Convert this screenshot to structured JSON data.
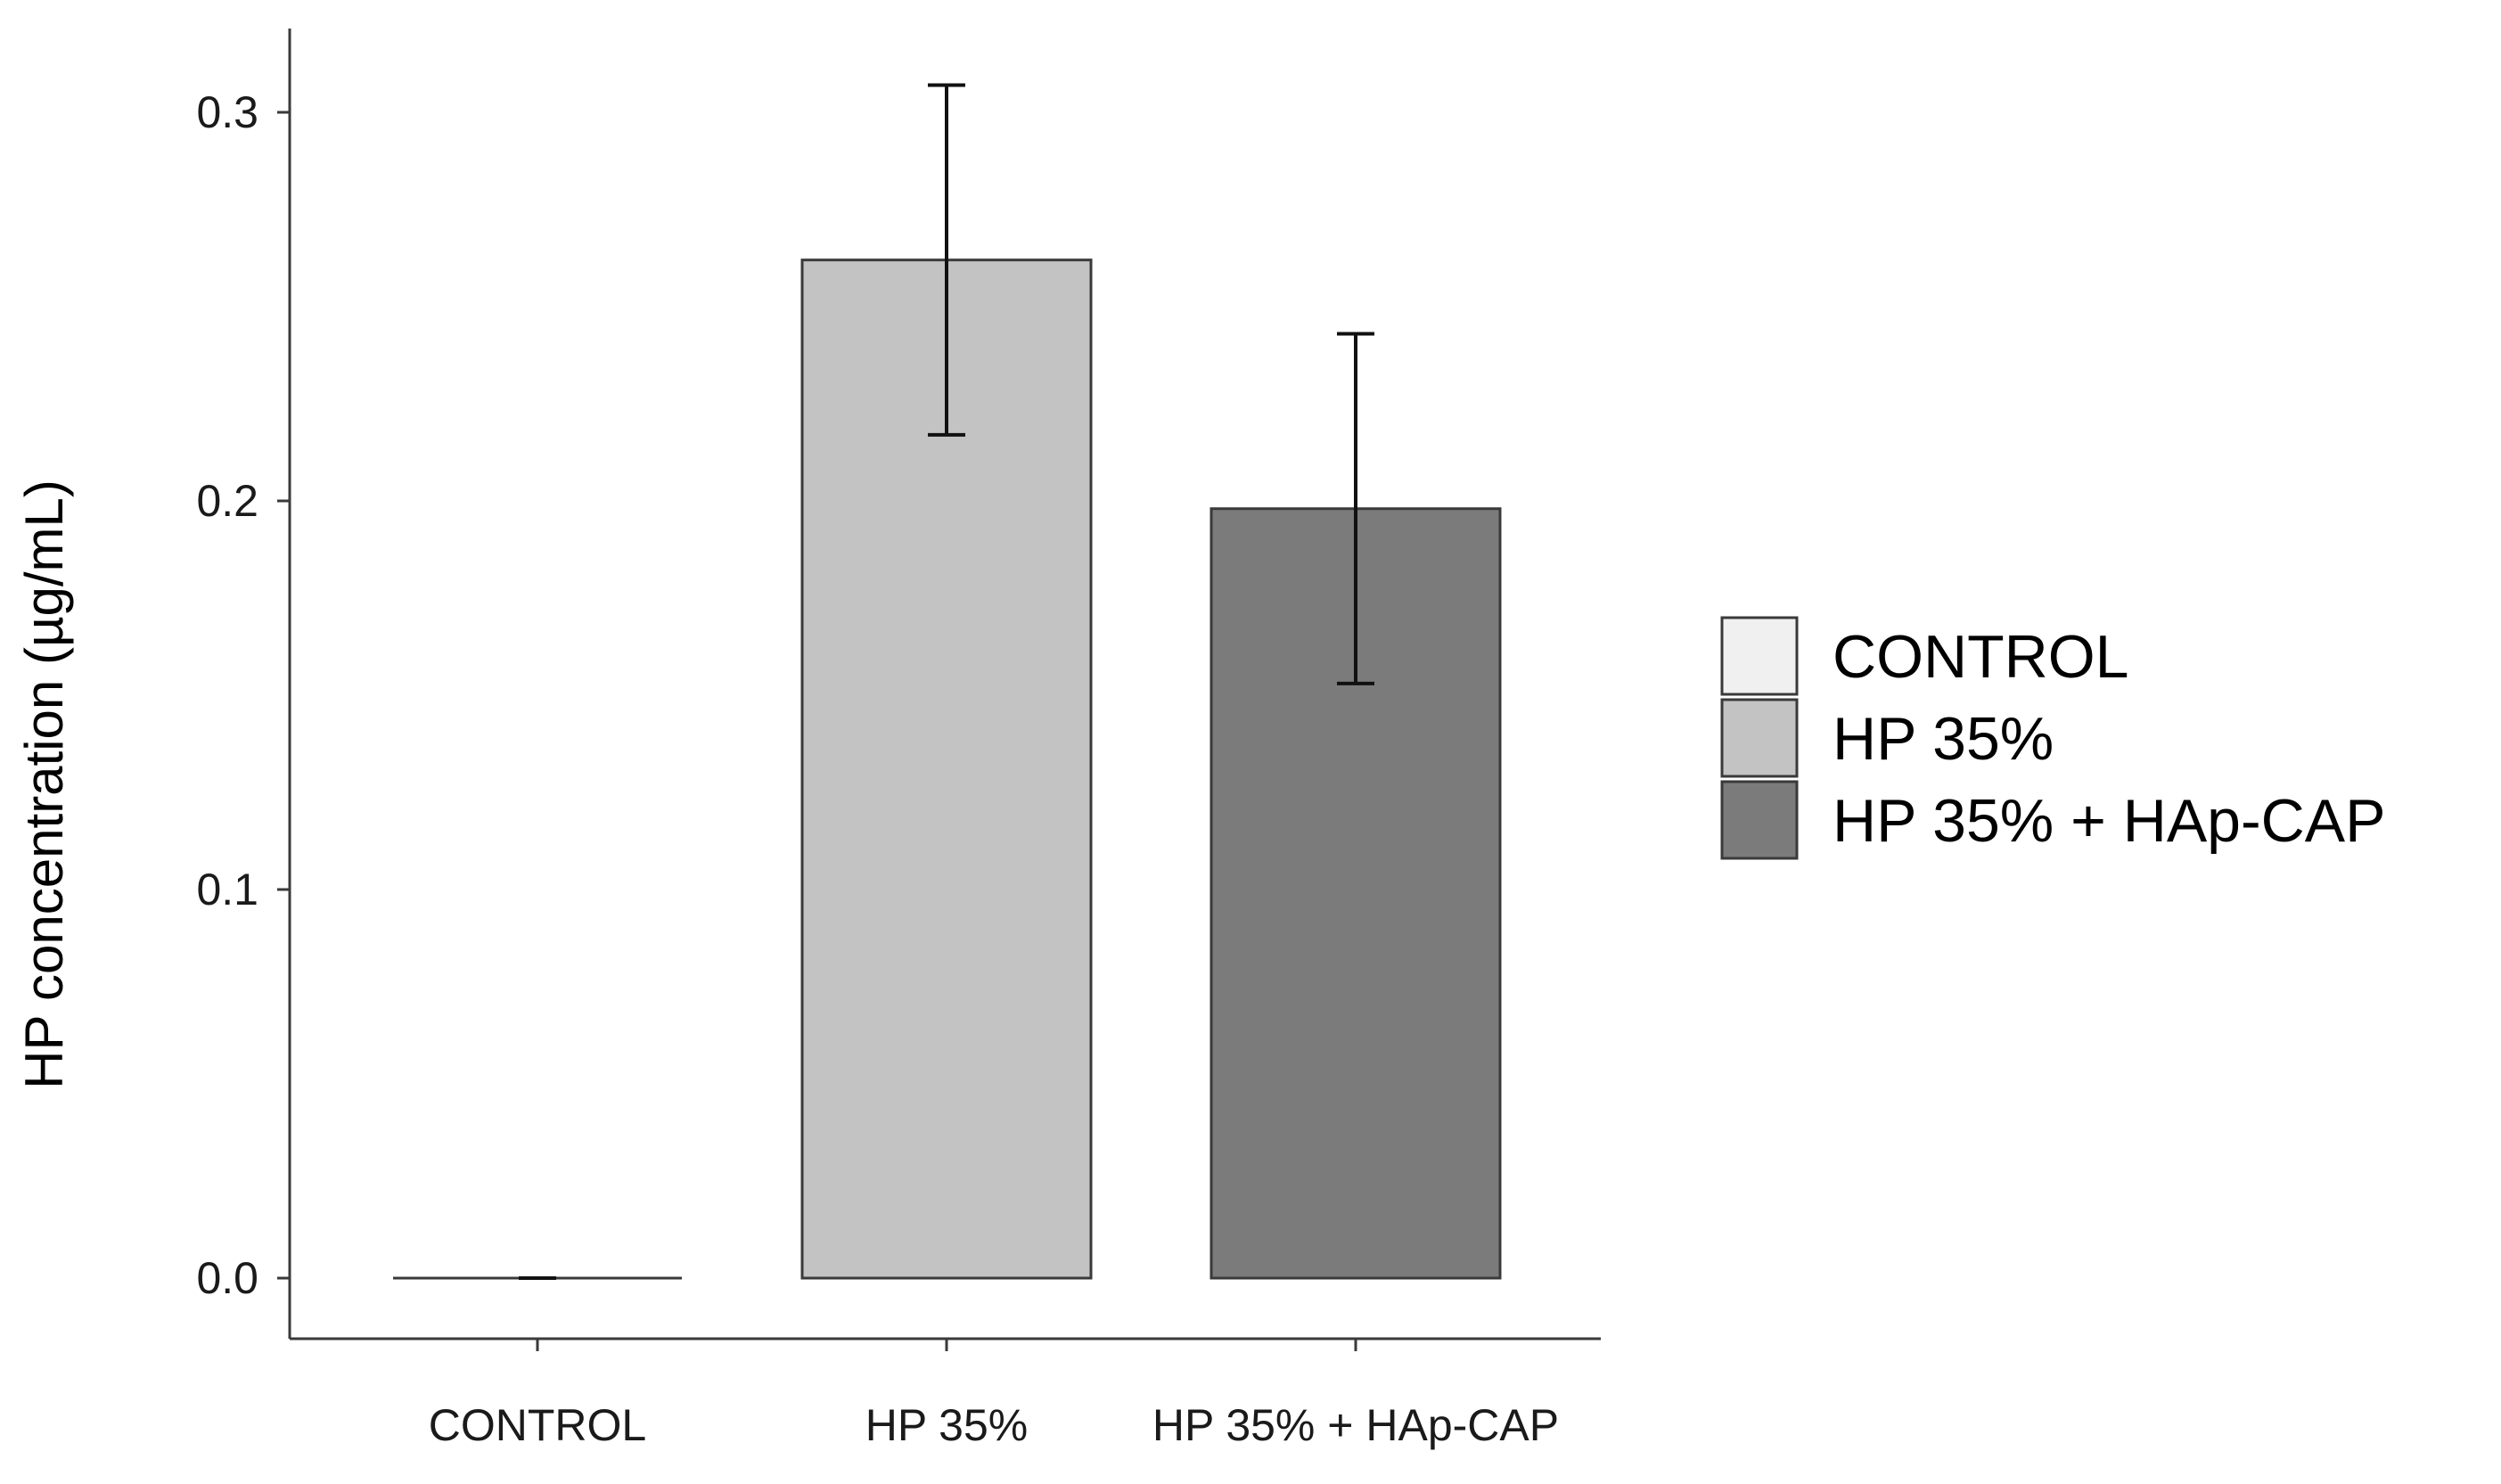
{
  "chart_data": {
    "type": "bar",
    "categories": [
      "CONTROL",
      "HP 35%",
      "HP 35% + HAp-CAP"
    ],
    "values": [
      0.0,
      0.262,
      0.198
    ],
    "error": [
      0.0,
      0.045,
      0.045
    ],
    "colors": [
      "#f0f0f0",
      "#c3c3c3",
      "#7b7b7b"
    ],
    "xlabel": "",
    "ylabel": "HP concentration (µg/mL)",
    "ylim": [
      -0.015,
      0.322
    ],
    "yticks": [
      0.0,
      0.1,
      0.2,
      0.3
    ],
    "ytick_labels": [
      "0.0",
      "0.1",
      "0.2",
      "0.3"
    ],
    "grid": false,
    "legend": {
      "position": "right",
      "entries": [
        "CONTROL",
        "HP 35%",
        "HP 35% + HAp-CAP"
      ]
    }
  }
}
